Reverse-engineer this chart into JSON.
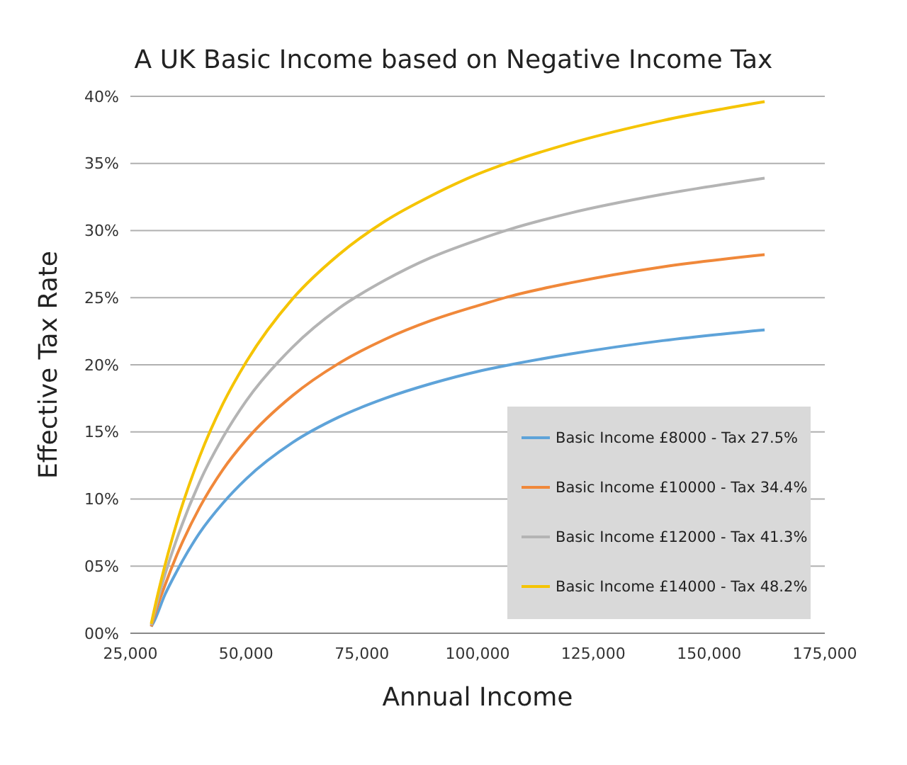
{
  "chart_data": {
    "type": "line",
    "title": "A UK Basic Income based on Negative Income Tax",
    "xlabel": "Annual Income",
    "ylabel": "Effective Tax Rate",
    "x": [
      29500,
      30000,
      32500,
      35000,
      40000,
      45000,
      50000,
      60000,
      70000,
      80000,
      90000,
      100000,
      107000,
      120000,
      140000,
      162000
    ],
    "series": [
      {
        "name": "Basic Income £8000 - Tax 27.5%",
        "color": "#5ea3d9",
        "values": [
          0.5,
          0.8,
          2.9,
          4.6,
          7.5,
          9.7,
          11.5,
          14.2,
          16.1,
          17.5,
          18.6,
          19.5,
          20.0,
          20.8,
          21.8,
          22.6
        ]
      },
      {
        "name": "Basic Income £10000 - Tax 34.4%",
        "color": "#f0883a",
        "values": [
          0.5,
          1.1,
          3.6,
          5.8,
          9.4,
          12.2,
          14.4,
          17.7,
          20.1,
          21.9,
          23.3,
          24.4,
          25.1,
          26.1,
          27.3,
          28.2
        ]
      },
      {
        "name": "Basic Income £12000 - Tax 41.3%",
        "color": "#b4b4b4",
        "values": [
          0.6,
          1.3,
          4.4,
          7.0,
          11.3,
          14.6,
          17.3,
          21.3,
          24.2,
          26.3,
          28.0,
          29.3,
          30.1,
          31.3,
          32.7,
          33.9
        ]
      },
      {
        "name": "Basic Income £14000 - Tax 48.2%",
        "color": "#f5c400",
        "values": [
          0.7,
          1.5,
          5.1,
          8.2,
          13.2,
          17.1,
          20.2,
          24.9,
          28.2,
          30.7,
          32.6,
          34.2,
          35.1,
          36.5,
          38.2,
          39.6
        ]
      }
    ],
    "xlim": [
      25000,
      175000
    ],
    "ylim": [
      0,
      40
    ],
    "xticks": [
      {
        "value": 25000,
        "label": "25,000"
      },
      {
        "value": 50000,
        "label": "50,000"
      },
      {
        "value": 75000,
        "label": "75,000"
      },
      {
        "value": 100000,
        "label": "100,000"
      },
      {
        "value": 125000,
        "label": "125,000"
      },
      {
        "value": 150000,
        "label": "150,000"
      },
      {
        "value": 175000,
        "label": "175,000"
      }
    ],
    "yticks": [
      {
        "value": 0,
        "label": "00%"
      },
      {
        "value": 5,
        "label": "05%"
      },
      {
        "value": 10,
        "label": "10%"
      },
      {
        "value": 15,
        "label": "15%"
      },
      {
        "value": 20,
        "label": "20%"
      },
      {
        "value": 25,
        "label": "25%"
      },
      {
        "value": 30,
        "label": "30%"
      },
      {
        "value": 35,
        "label": "35%"
      },
      {
        "value": 40,
        "label": "40%"
      }
    ],
    "grid": "y",
    "legend": "bottom right",
    "marker": "none",
    "line_style": "solid"
  }
}
